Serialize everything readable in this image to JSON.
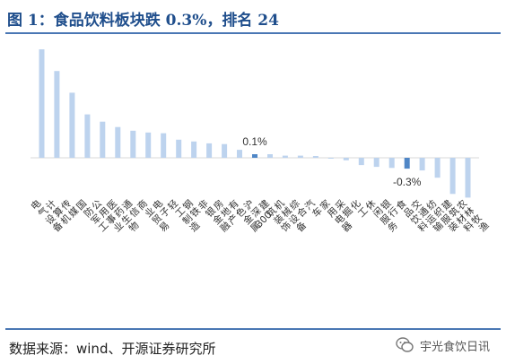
{
  "title": "图 1：食品饮料板块跌 0.3%，排名 24",
  "source": "数据来源：wind、开源证券研究所",
  "watermark": {
    "text": "宇光食饮日讯",
    "icon": "wechat-icon"
  },
  "colors": {
    "bar": "#bdd3ee",
    "highlight": "#4f86c6",
    "title": "#1f4e8c",
    "rule": "#4a77b4"
  },
  "chart_data": {
    "type": "bar",
    "categories": [
      "电气设备",
      "计算机",
      "传媒",
      "国防军工",
      "公用事业",
      "医药生物",
      "通信",
      "商业贸易",
      "电子",
      "轻工制造",
      "钢铁",
      "非银金融",
      "房地产",
      "有色金属",
      "沪深300",
      "建筑装饰",
      "机械设备",
      "综合",
      "汽车",
      "家用电器",
      "采掘",
      "化工",
      "休闲服务",
      "银行",
      "食品饮料",
      "交通运输",
      "纺织服装",
      "建筑材料",
      "农林牧渔"
    ],
    "values": [
      3.0,
      2.4,
      1.8,
      1.2,
      1.0,
      0.85,
      0.75,
      0.7,
      0.68,
      0.5,
      0.45,
      0.4,
      0.38,
      0.22,
      0.1,
      0.1,
      0.06,
      0.06,
      0.05,
      -0.02,
      -0.07,
      -0.2,
      -0.25,
      -0.28,
      -0.3,
      -0.35,
      -0.55,
      -1.0,
      -1.1
    ],
    "highlight": [
      {
        "category": "沪深300",
        "label": "0.1%"
      },
      {
        "category": "食品饮料",
        "label": "-0.3%"
      }
    ],
    "ylim": [
      -1.3,
      3.3
    ]
  }
}
